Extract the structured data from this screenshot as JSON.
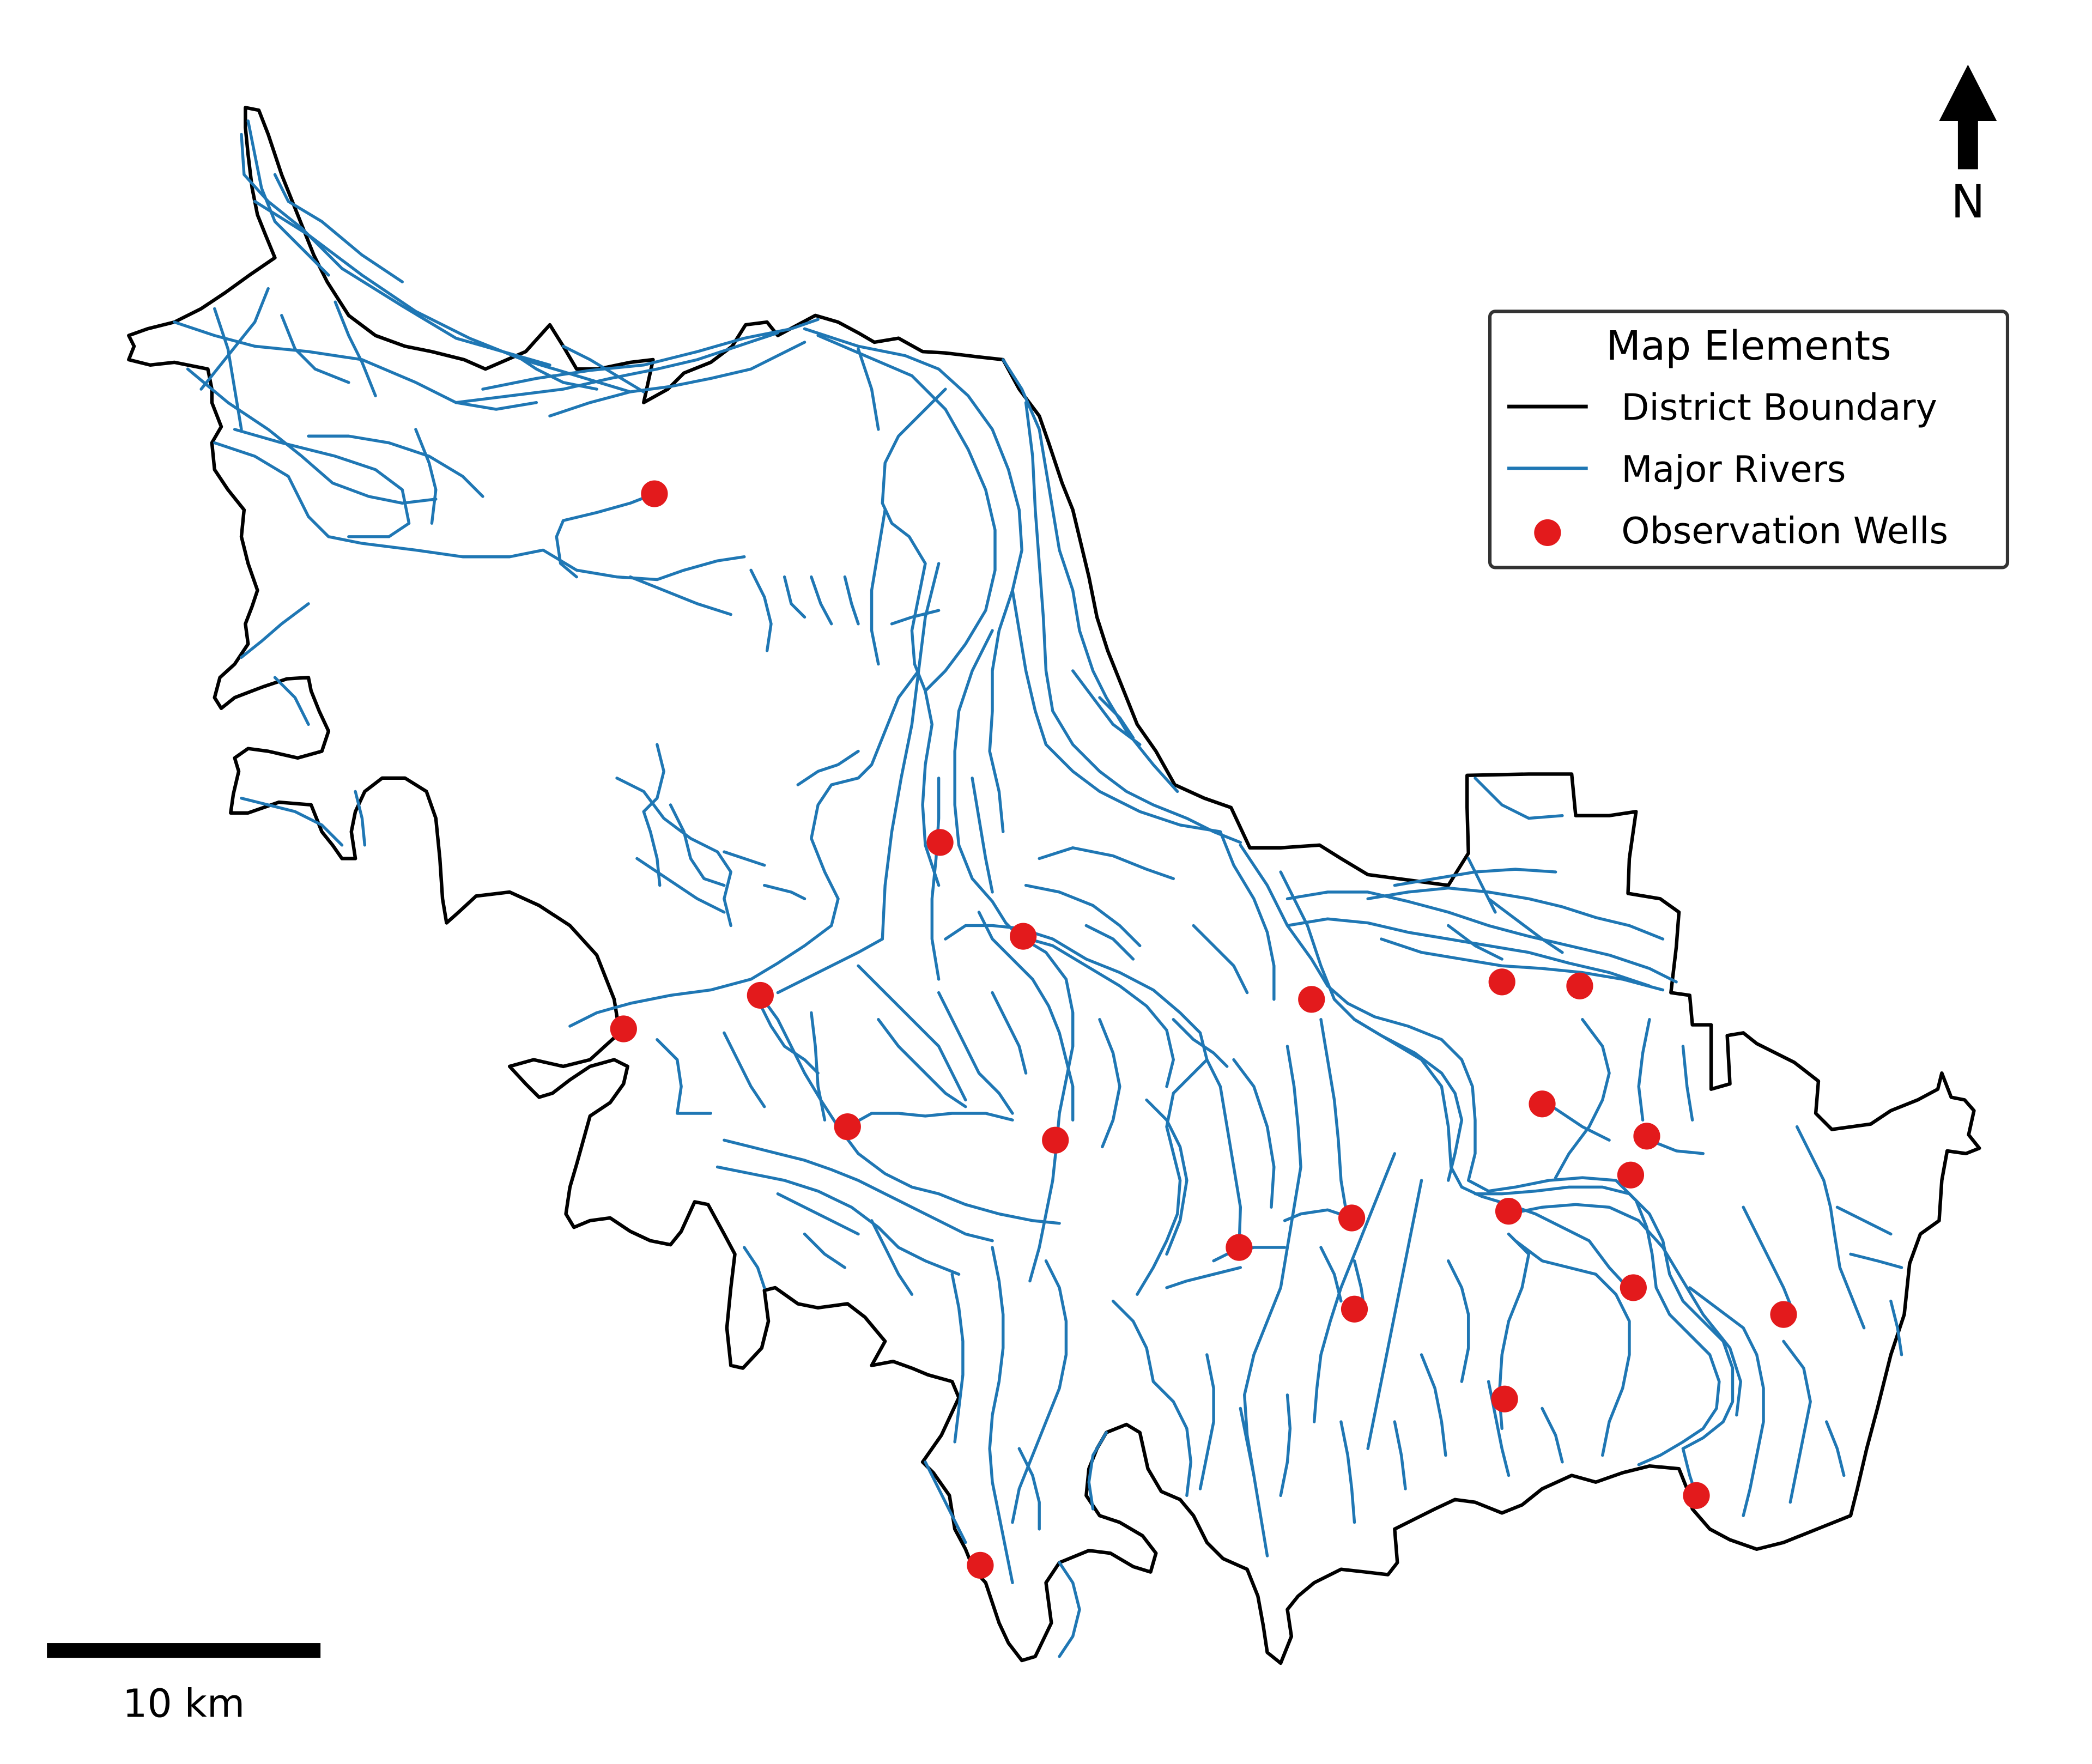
{
  "map": {
    "legend": {
      "title": "Map Elements",
      "items": [
        {
          "label": "District Boundary",
          "symbol": "line",
          "color": "#000000"
        },
        {
          "label": "Major Rivers",
          "symbol": "line",
          "color": "#1f77b4"
        },
        {
          "label": "Observation Wells",
          "symbol": "dot",
          "color": "#e31a1c"
        }
      ]
    },
    "north_arrow": {
      "label": "N",
      "icon": "north-arrow-icon"
    },
    "scale_bar": {
      "label": "10 km"
    },
    "colors": {
      "boundary": "#000000",
      "rivers": "#1f77b4",
      "wells": "#e31a1c",
      "background": "#ffffff"
    }
  }
}
